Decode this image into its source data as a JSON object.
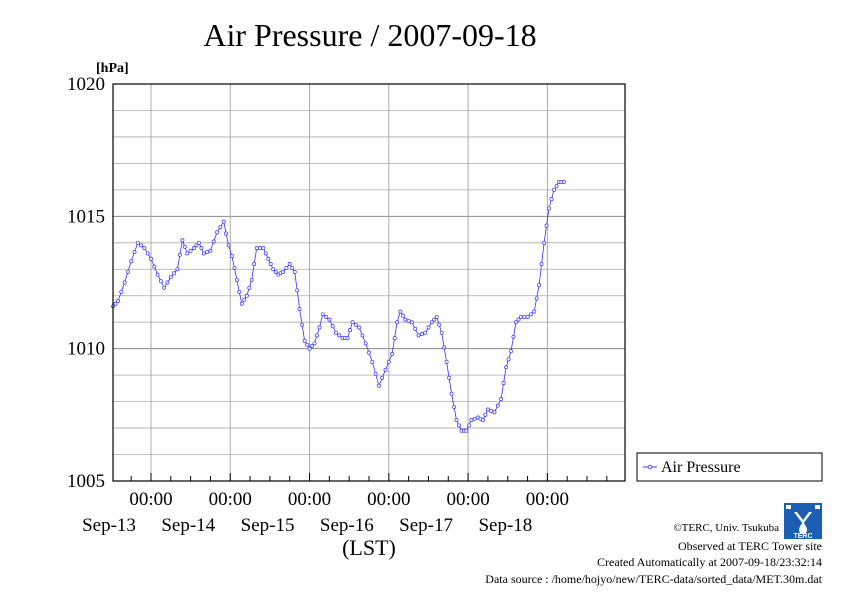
{
  "chart_data": {
    "type": "line",
    "title": "Air Pressure / 2007-09-18",
    "ylabel": "[hPa]",
    "xlabel": "(LST)",
    "ylim": [
      1005,
      1020
    ],
    "yticks": [
      "1005",
      "1010",
      "1015",
      "1020"
    ],
    "xlim": [
      "2007-09-12 12:30",
      "2007-09-18 23:30"
    ],
    "xticks": [
      {
        "time": "2007-09-13 00:00",
        "label": "00:00",
        "date": "Sep-13"
      },
      {
        "time": "2007-09-14 00:00",
        "label": "00:00",
        "date": "Sep-14"
      },
      {
        "time": "2007-09-15 00:00",
        "label": "00:00",
        "date": "Sep-15"
      },
      {
        "time": "2007-09-16 00:00",
        "label": "00:00",
        "date": "Sep-16"
      },
      {
        "time": "2007-09-17 00:00",
        "label": "00:00",
        "date": "Sep-17"
      },
      {
        "time": "2007-09-18 00:00",
        "label": "00:00",
        "date": "Sep-18"
      }
    ],
    "grid": true,
    "legend_position": "right",
    "series": [
      {
        "name": "Air Pressure",
        "color": "#3333ff",
        "points": [
          [
            "2007-09-12 12:30",
            1011.6
          ],
          [
            "2007-09-12 14:00",
            1011.8
          ],
          [
            "2007-09-12 16:00",
            1012.5
          ],
          [
            "2007-09-12 18:00",
            1013.3
          ],
          [
            "2007-09-12 20:00",
            1014.0
          ],
          [
            "2007-09-12 22:00",
            1013.8
          ],
          [
            "2007-09-13 00:00",
            1013.4
          ],
          [
            "2007-09-13 02:00",
            1012.8
          ],
          [
            "2007-09-13 04:00",
            1012.3
          ],
          [
            "2007-09-13 06:00",
            1012.7
          ],
          [
            "2007-09-13 08:00",
            1013.0
          ],
          [
            "2007-09-13 09:30",
            1014.1
          ],
          [
            "2007-09-13 11:00",
            1013.6
          ],
          [
            "2007-09-13 13:00",
            1013.8
          ],
          [
            "2007-09-13 14:30",
            1014.0
          ],
          [
            "2007-09-13 16:00",
            1013.6
          ],
          [
            "2007-09-13 18:00",
            1013.7
          ],
          [
            "2007-09-13 20:00",
            1014.4
          ],
          [
            "2007-09-13 22:00",
            1014.8
          ],
          [
            "2007-09-13 23:30",
            1013.9
          ],
          [
            "2007-09-14 00:30",
            1013.5
          ],
          [
            "2007-09-14 02:00",
            1012.6
          ],
          [
            "2007-09-14 03:30",
            1011.7
          ],
          [
            "2007-09-14 05:00",
            1012.0
          ],
          [
            "2007-09-14 06:30",
            1012.6
          ],
          [
            "2007-09-14 08:00",
            1013.8
          ],
          [
            "2007-09-14 10:00",
            1013.8
          ],
          [
            "2007-09-14 11:30",
            1013.4
          ],
          [
            "2007-09-14 13:00",
            1013.0
          ],
          [
            "2007-09-14 14:30",
            1012.8
          ],
          [
            "2007-09-14 16:00",
            1012.9
          ],
          [
            "2007-09-14 18:00",
            1013.2
          ],
          [
            "2007-09-14 19:30",
            1012.9
          ],
          [
            "2007-09-14 21:00",
            1011.5
          ],
          [
            "2007-09-14 22:30",
            1010.3
          ],
          [
            "2007-09-15 00:00",
            1010.0
          ],
          [
            "2007-09-15 01:30",
            1010.2
          ],
          [
            "2007-09-15 03:00",
            1010.8
          ],
          [
            "2007-09-15 04:00",
            1011.3
          ],
          [
            "2007-09-15 06:00",
            1011.1
          ],
          [
            "2007-09-15 08:00",
            1010.6
          ],
          [
            "2007-09-15 10:00",
            1010.4
          ],
          [
            "2007-09-15 11:30",
            1010.4
          ],
          [
            "2007-09-15 13:00",
            1011.0
          ],
          [
            "2007-09-15 15:00",
            1010.8
          ],
          [
            "2007-09-15 17:00",
            1010.2
          ],
          [
            "2007-09-15 19:00",
            1009.5
          ],
          [
            "2007-09-15 21:00",
            1008.6
          ],
          [
            "2007-09-15 23:00",
            1009.2
          ],
          [
            "2007-09-16 01:00",
            1009.8
          ],
          [
            "2007-09-16 02:30",
            1011.0
          ],
          [
            "2007-09-16 03:30",
            1011.4
          ],
          [
            "2007-09-16 05:00",
            1011.1
          ],
          [
            "2007-09-16 07:00",
            1011.0
          ],
          [
            "2007-09-16 09:00",
            1010.5
          ],
          [
            "2007-09-16 11:00",
            1010.6
          ],
          [
            "2007-09-16 13:00",
            1011.0
          ],
          [
            "2007-09-16 14:30",
            1011.2
          ],
          [
            "2007-09-16 16:00",
            1010.6
          ],
          [
            "2007-09-16 17:30",
            1009.5
          ],
          [
            "2007-09-16 19:00",
            1008.3
          ],
          [
            "2007-09-16 20:30",
            1007.3
          ],
          [
            "2007-09-16 22:00",
            1006.9
          ],
          [
            "2007-09-16 23:30",
            1006.9
          ],
          [
            "2007-09-17 01:00",
            1007.3
          ],
          [
            "2007-09-17 03:00",
            1007.4
          ],
          [
            "2007-09-17 04:30",
            1007.3
          ],
          [
            "2007-09-17 06:00",
            1007.7
          ],
          [
            "2007-09-17 08:00",
            1007.6
          ],
          [
            "2007-09-17 10:00",
            1008.1
          ],
          [
            "2007-09-17 11:30",
            1009.3
          ],
          [
            "2007-09-17 13:00",
            1009.9
          ],
          [
            "2007-09-17 14:30",
            1011.0
          ],
          [
            "2007-09-17 16:00",
            1011.2
          ],
          [
            "2007-09-17 18:00",
            1011.2
          ],
          [
            "2007-09-17 20:00",
            1011.4
          ],
          [
            "2007-09-17 21:30",
            1012.4
          ],
          [
            "2007-09-17 23:00",
            1014.0
          ],
          [
            "2007-09-18 00:30",
            1015.3
          ],
          [
            "2007-09-18 02:00",
            1016.0
          ],
          [
            "2007-09-18 03:30",
            1016.3
          ],
          [
            "2007-09-18 05:00",
            1016.3
          ]
        ]
      }
    ]
  },
  "footer": {
    "copyright": "©TERC, Univ. Tsukuba",
    "observed": "Observed at TERC Tower site",
    "created": "Created Automatically at 2007-09-18/23:32:14",
    "source": "Data source : /home/hojyo/new/TERC-data/sorted_data/MET.30m.dat",
    "logo_text": "TERC"
  }
}
